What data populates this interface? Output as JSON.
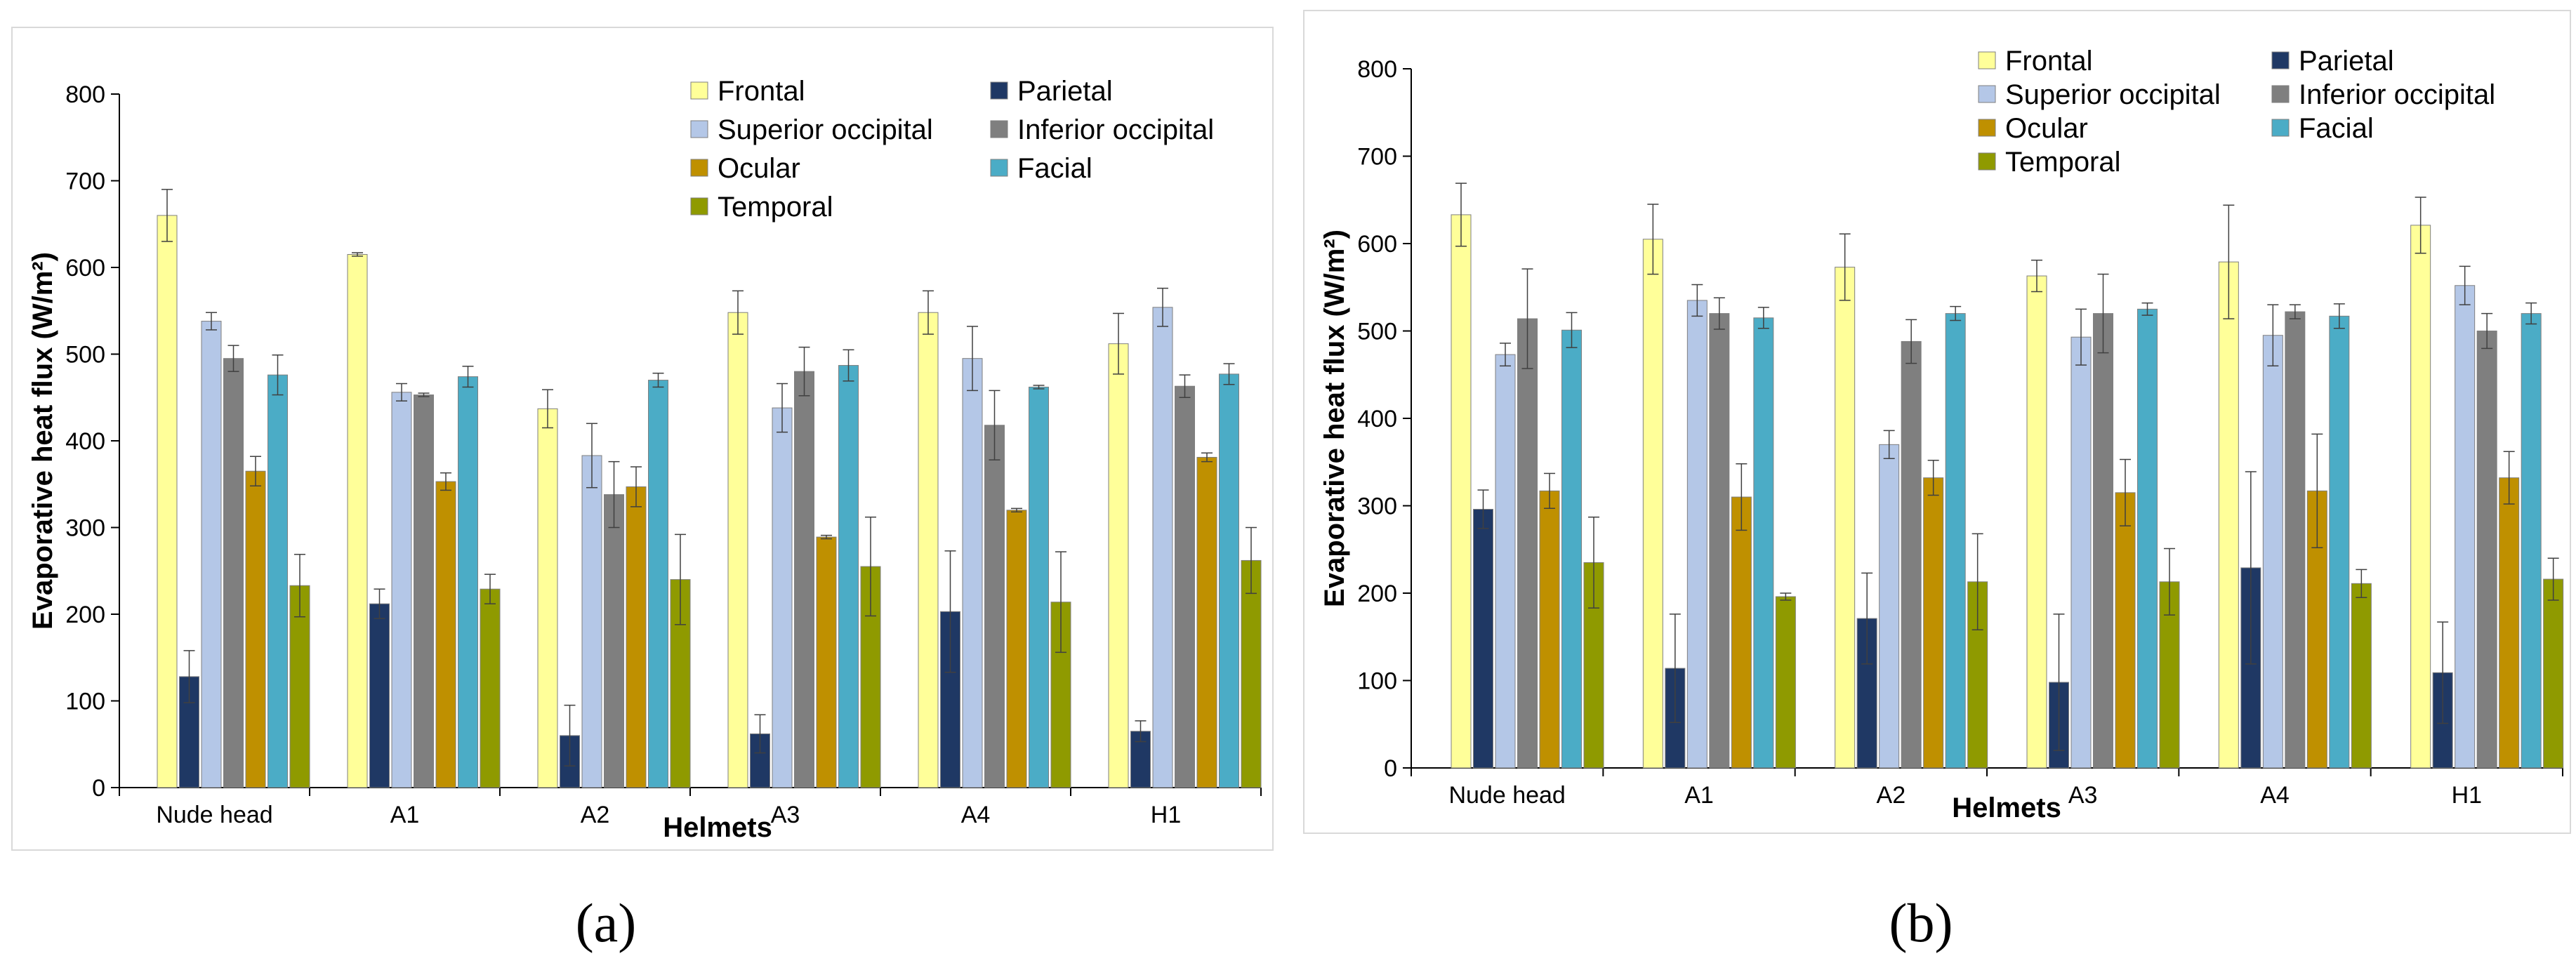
{
  "series_order": [
    "Frontal",
    "Parietal",
    "Superior occipital",
    "Inferior occipital",
    "Ocular",
    "Facial",
    "Temporal"
  ],
  "colors": {
    "Frontal": "#ffff99",
    "Parietal": "#1f3864",
    "Superior occipital": "#b4c7e7",
    "Inferior occipital": "#7f7f7f",
    "Ocular": "#bf9000",
    "Facial": "#4bacc6",
    "Temporal": "#8f9a00"
  },
  "chart_data": [
    {
      "type": "bar",
      "panel_label": "(a)",
      "xlabel": "Helmets",
      "ylabel": "Evaporative heat flux (W/m²)",
      "ylim": [
        0,
        800
      ],
      "yticks": [
        0,
        100,
        200,
        300,
        400,
        500,
        600,
        700,
        800
      ],
      "categories": [
        "Nude head",
        "A1",
        "A2",
        "A3",
        "A4",
        "H1"
      ],
      "legend": [
        "Frontal",
        "Parietal",
        "Superior occipital",
        "Inferior occipital",
        "Ocular",
        "Facial",
        "Temporal"
      ],
      "series": [
        {
          "name": "Frontal",
          "values": [
            660,
            615,
            437,
            548,
            548,
            512
          ],
          "errors": [
            30,
            2,
            22,
            25,
            25,
            35
          ]
        },
        {
          "name": "Parietal",
          "values": [
            128,
            212,
            60,
            62,
            203,
            65
          ],
          "errors": [
            30,
            17,
            35,
            22,
            70,
            12
          ]
        },
        {
          "name": "Superior occipital",
          "values": [
            538,
            456,
            383,
            438,
            495,
            554
          ],
          "errors": [
            10,
            10,
            37,
            28,
            37,
            22
          ]
        },
        {
          "name": "Inferior occipital",
          "values": [
            495,
            453,
            338,
            480,
            418,
            463
          ],
          "errors": [
            15,
            2,
            38,
            28,
            40,
            13
          ]
        },
        {
          "name": "Ocular",
          "values": [
            365,
            353,
            347,
            289,
            320,
            381
          ],
          "errors": [
            17,
            10,
            23,
            2,
            2,
            5
          ]
        },
        {
          "name": "Facial",
          "values": [
            476,
            474,
            470,
            487,
            462,
            477
          ],
          "errors": [
            23,
            12,
            8,
            18,
            2,
            12
          ]
        },
        {
          "name": "Temporal",
          "values": [
            233,
            229,
            240,
            255,
            214,
            262
          ],
          "errors": [
            36,
            17,
            52,
            57,
            58,
            38
          ]
        }
      ]
    },
    {
      "type": "bar",
      "panel_label": "(b)",
      "xlabel": "Helmets",
      "ylabel": "Evaporative heat flux (W/m²)",
      "ylim": [
        0,
        800
      ],
      "yticks": [
        0,
        100,
        200,
        300,
        400,
        500,
        600,
        700,
        800
      ],
      "categories": [
        "Nude head",
        "A1",
        "A2",
        "A3",
        "A4",
        "H1"
      ],
      "legend": [
        "Frontal",
        "Parietal",
        "Superior occipital",
        "Inferior occipital",
        "Ocular",
        "Facial",
        "Temporal"
      ],
      "series": [
        {
          "name": "Frontal",
          "values": [
            633,
            605,
            573,
            563,
            579,
            621
          ],
          "errors": [
            36,
            40,
            38,
            18,
            65,
            32
          ]
        },
        {
          "name": "Parietal",
          "values": [
            296,
            114,
            171,
            98,
            229,
            109
          ],
          "errors": [
            22,
            62,
            52,
            78,
            110,
            58
          ]
        },
        {
          "name": "Superior occipital",
          "values": [
            473,
            535,
            370,
            493,
            495,
            552
          ],
          "errors": [
            13,
            18,
            16,
            32,
            35,
            22
          ]
        },
        {
          "name": "Inferior occipital",
          "values": [
            514,
            520,
            488,
            520,
            522,
            500
          ],
          "errors": [
            57,
            18,
            25,
            45,
            8,
            20
          ]
        },
        {
          "name": "Ocular",
          "values": [
            317,
            310,
            332,
            315,
            317,
            332
          ],
          "errors": [
            20,
            38,
            20,
            38,
            65,
            30
          ]
        },
        {
          "name": "Facial",
          "values": [
            501,
            515,
            520,
            525,
            517,
            520
          ],
          "errors": [
            20,
            12,
            8,
            7,
            14,
            12
          ]
        },
        {
          "name": "Temporal",
          "values": [
            235,
            196,
            213,
            213,
            211,
            216
          ],
          "errors": [
            52,
            4,
            55,
            38,
            16,
            24
          ]
        }
      ]
    }
  ]
}
